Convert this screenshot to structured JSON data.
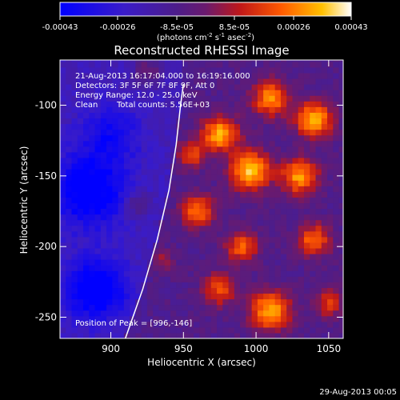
{
  "chart_data": {
    "type": "heatmap",
    "title": "Reconstructed RHESSI Image",
    "xlabel": "Heliocentric X (arcsec)",
    "ylabel": "Heliocentric Y (arcsec)",
    "xlim": [
      865,
      1060
    ],
    "ylim": [
      -265,
      -68
    ],
    "xticks": [
      900,
      950,
      1000,
      1050
    ],
    "yticks": [
      -100,
      -150,
      -200,
      -250
    ],
    "colorbar": {
      "label_main": "(photons cm",
      "label_exp1": "-2",
      "label_mid": " s",
      "label_exp2": "-1",
      "label_end": " asec",
      "label_exp3": "-2",
      "label_close": ")",
      "range": [
        -0.00043,
        0.00043
      ],
      "ticks": [
        -0.00043,
        -0.00026,
        -8.5e-05,
        8.5e-05,
        0.00026,
        0.00043
      ],
      "tick_labels": [
        "-0.00043",
        "-0.00026",
        "-8.5e-05",
        "8.5e-05",
        "0.00026",
        "0.00043"
      ]
    },
    "annotations": {
      "time_range": "21-Aug-2013 16:17:04.000 to 16:19:16.000",
      "detectors": "Detectors: 3F 5F 6F 7F 8F 9F, Att 0",
      "energy_range": "Energy Range: 12.0 - 25.0 keV",
      "clean_label": "Clean",
      "total_counts": "Total counts: 5.56E+03",
      "peak": "Position of Peak = [996,-146]"
    },
    "limb_curve": [
      [
        910,
        -265
      ],
      [
        922,
        -230
      ],
      [
        932,
        -195
      ],
      [
        940,
        -160
      ],
      [
        945,
        -128
      ],
      [
        948,
        -100
      ],
      [
        950,
        -85
      ]
    ],
    "sources": [
      {
        "x": 975,
        "y": -120,
        "amp": 0.0004,
        "sigma": 9
      },
      {
        "x": 1010,
        "y": -95,
        "amp": 0.00036,
        "sigma": 9
      },
      {
        "x": 1040,
        "y": -110,
        "amp": 0.00042,
        "sigma": 9
      },
      {
        "x": 996,
        "y": -146,
        "amp": 0.00043,
        "sigma": 10
      },
      {
        "x": 1030,
        "y": -150,
        "amp": 0.00038,
        "sigma": 9
      },
      {
        "x": 960,
        "y": -175,
        "amp": 0.00034,
        "sigma": 8
      },
      {
        "x": 990,
        "y": -200,
        "amp": 0.0003,
        "sigma": 8
      },
      {
        "x": 1040,
        "y": -195,
        "amp": 0.00032,
        "sigma": 8
      },
      {
        "x": 1010,
        "y": -245,
        "amp": 0.0004,
        "sigma": 10
      },
      {
        "x": 975,
        "y": -230,
        "amp": 0.00028,
        "sigma": 8
      },
      {
        "x": 955,
        "y": -135,
        "amp": 0.00025,
        "sigma": 7
      },
      {
        "x": 1050,
        "y": -240,
        "amp": 0.00024,
        "sigma": 7
      },
      {
        "x": 925,
        "y": -75,
        "amp": 0.0002,
        "sigma": 7
      },
      {
        "x": 918,
        "y": -170,
        "amp": 0.00018,
        "sigma": 6
      },
      {
        "x": 935,
        "y": -210,
        "amp": 0.00015,
        "sigma": 6
      }
    ],
    "negatives": [
      {
        "x": 885,
        "y": -160,
        "amp": -0.0003,
        "sigma": 18
      },
      {
        "x": 890,
        "y": -230,
        "amp": -0.00032,
        "sigma": 15
      },
      {
        "x": 900,
        "y": -120,
        "amp": -0.00018,
        "sigma": 14
      }
    ]
  },
  "footer": {
    "date": "29-Aug-2013 00:05"
  }
}
